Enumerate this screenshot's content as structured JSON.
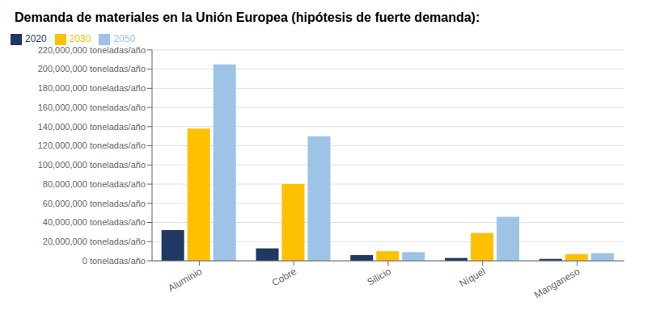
{
  "chart_data": {
    "type": "bar",
    "title": "Demanda de materiales en la Unión Europea (hipótesis de fuerte demanda):",
    "categories": [
      "Aluminio",
      "Cobre",
      "Silicio",
      "Níquel",
      "Manganeso"
    ],
    "series": [
      {
        "name": "2020",
        "color": "#1f3864",
        "values": [
          32000000,
          13000000,
          6000000,
          3000000,
          2000000
        ]
      },
      {
        "name": "2030",
        "color": "#ffc000",
        "values": [
          138000000,
          80000000,
          10000000,
          29000000,
          7000000
        ]
      },
      {
        "name": "2050",
        "color": "#9dc3e6",
        "values": [
          205000000,
          130000000,
          9000000,
          46000000,
          8000000
        ]
      }
    ],
    "ylim": [
      0,
      220000000
    ],
    "yticks": [
      {
        "value": 0,
        "label": "0 toneladas/año"
      },
      {
        "value": 20000000,
        "label": "20,000,000 toneladas/año"
      },
      {
        "value": 40000000,
        "label": "40,000,000 toneladas/año"
      },
      {
        "value": 60000000,
        "label": "60,000,000 toneladas/año"
      },
      {
        "value": 80000000,
        "label": "80,000,000 toneladas/año"
      },
      {
        "value": 100000000,
        "label": "100,000,000 toneladas/año"
      },
      {
        "value": 120000000,
        "label": "120,000,000 toneladas/año"
      },
      {
        "value": 140000000,
        "label": "140,000,000 toneladas/año"
      },
      {
        "value": 160000000,
        "label": "160,000,000 toneladas/año"
      },
      {
        "value": 180000000,
        "label": "180,000,000 toneladas/año"
      },
      {
        "value": 200000000,
        "label": "200,000,000 toneladas/año"
      },
      {
        "value": 220000000,
        "label": "220,000,000 toneladas/año"
      }
    ],
    "grid": true,
    "legend": "upper left"
  }
}
